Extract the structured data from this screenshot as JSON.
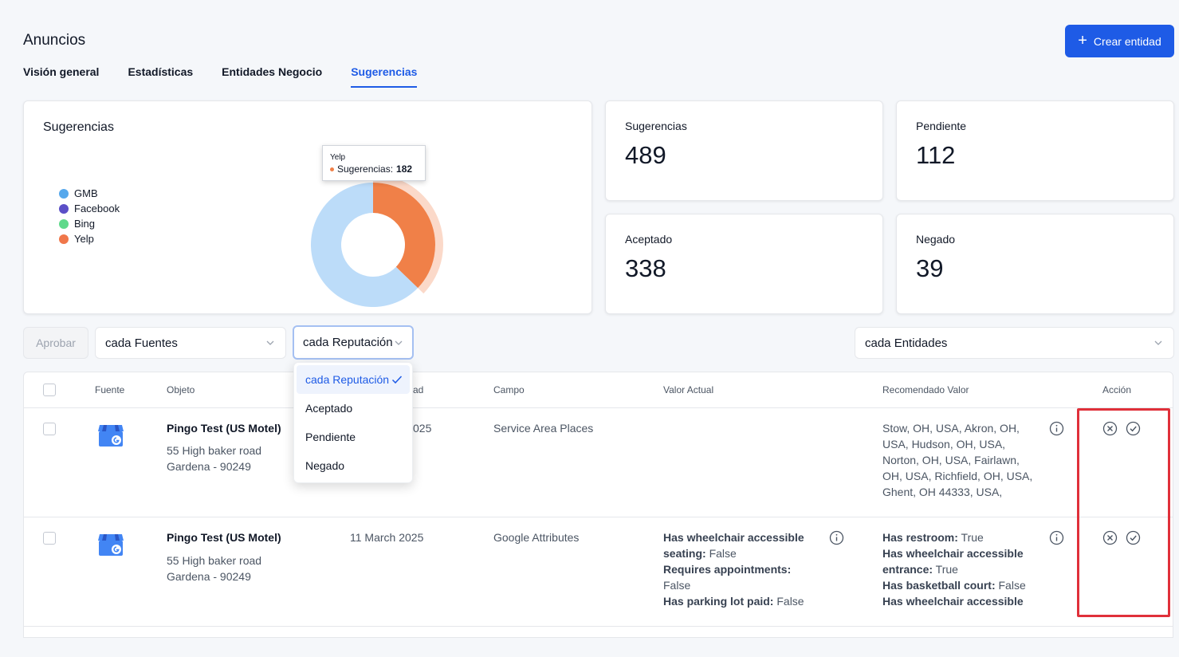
{
  "header": {
    "title": "Anuncios",
    "create_button": "Crear entidad",
    "create_icon": "+"
  },
  "tabs": [
    {
      "label": "Visión general",
      "active": false
    },
    {
      "label": "Estadísticas",
      "active": false
    },
    {
      "label": "Entidades Negocio",
      "active": false
    },
    {
      "label": "Sugerencias",
      "active": true
    }
  ],
  "chart_card": {
    "title": "Sugerencias",
    "tooltip": {
      "source": "Yelp",
      "label": "Sugerencias:",
      "value": "182"
    }
  },
  "chart_data": {
    "type": "pie",
    "title": "Sugerencias",
    "legend_position": "left",
    "categories": [
      "GMB",
      "Facebook",
      "Bing",
      "Yelp"
    ],
    "colors": [
      "#bcdcf9",
      "#5b4fc7",
      "#5fd98b",
      "#f08048"
    ],
    "legend_colors": [
      "#56a8ec",
      "#5b4fc7",
      "#5fd98b",
      "#f0774a"
    ],
    "values": [
      307,
      0,
      0,
      182
    ],
    "highlighted": "Yelp"
  },
  "stats": [
    {
      "label": "Sugerencias",
      "value": "489"
    },
    {
      "label": "Pendiente",
      "value": "112"
    },
    {
      "label": "Aceptado",
      "value": "338"
    },
    {
      "label": "Negado",
      "value": "39"
    }
  ],
  "filters": {
    "approve_button": "Aprobar",
    "sources": "cada Fuentes",
    "reputation": "cada Reputación",
    "entities": "cada Entidades"
  },
  "dropdown": {
    "options": [
      "cada Reputación",
      "Aceptado",
      "Pendiente",
      "Negado"
    ],
    "selected": "cada Reputación"
  },
  "table": {
    "columns": {
      "source": "Fuente",
      "object": "Objeto",
      "date": "ad",
      "field": "Campo",
      "current": "Valor Actual",
      "recommended": "Recomendado Valor",
      "action": "Acción"
    },
    "rows": [
      {
        "name": "Pingo Test (US Motel)",
        "address1": "55 High baker road",
        "address2": "Gardena - 90249",
        "date": "025",
        "field": "Service Area Places",
        "current": [],
        "recommended_text": [
          "Stow, OH, USA, Akron, OH,",
          "USA, Hudson, OH, USA,",
          "Norton, OH, USA, Fairlawn,",
          "OH, USA, Richfield, OH, USA,",
          "Ghent, OH 44333, USA,"
        ]
      },
      {
        "name": "Pingo Test (US Motel)",
        "address1": "55 High baker road",
        "address2": "Gardena - 90249",
        "date": "11 March 2025",
        "field": "Google Attributes",
        "current": [
          {
            "k": "Has wheelchair accessible",
            "v": ""
          },
          {
            "k": "seating:",
            "v": " False"
          },
          {
            "k": "Requires appointments:",
            "v": ""
          },
          {
            "k": "",
            "v": "False"
          },
          {
            "k": "Has parking lot paid:",
            "v": " False"
          }
        ],
        "recommended": [
          {
            "k": "Has restroom:",
            "v": " True"
          },
          {
            "k": "Has wheelchair accessible",
            "v": ""
          },
          {
            "k": "entrance:",
            "v": " True"
          },
          {
            "k": "Has basketball court:",
            "v": " False"
          },
          {
            "k": "Has wheelchair accessible",
            "v": ""
          }
        ]
      }
    ]
  },
  "colors": {
    "accent": "#1e5be6",
    "highlight_border": "#e0303a"
  }
}
